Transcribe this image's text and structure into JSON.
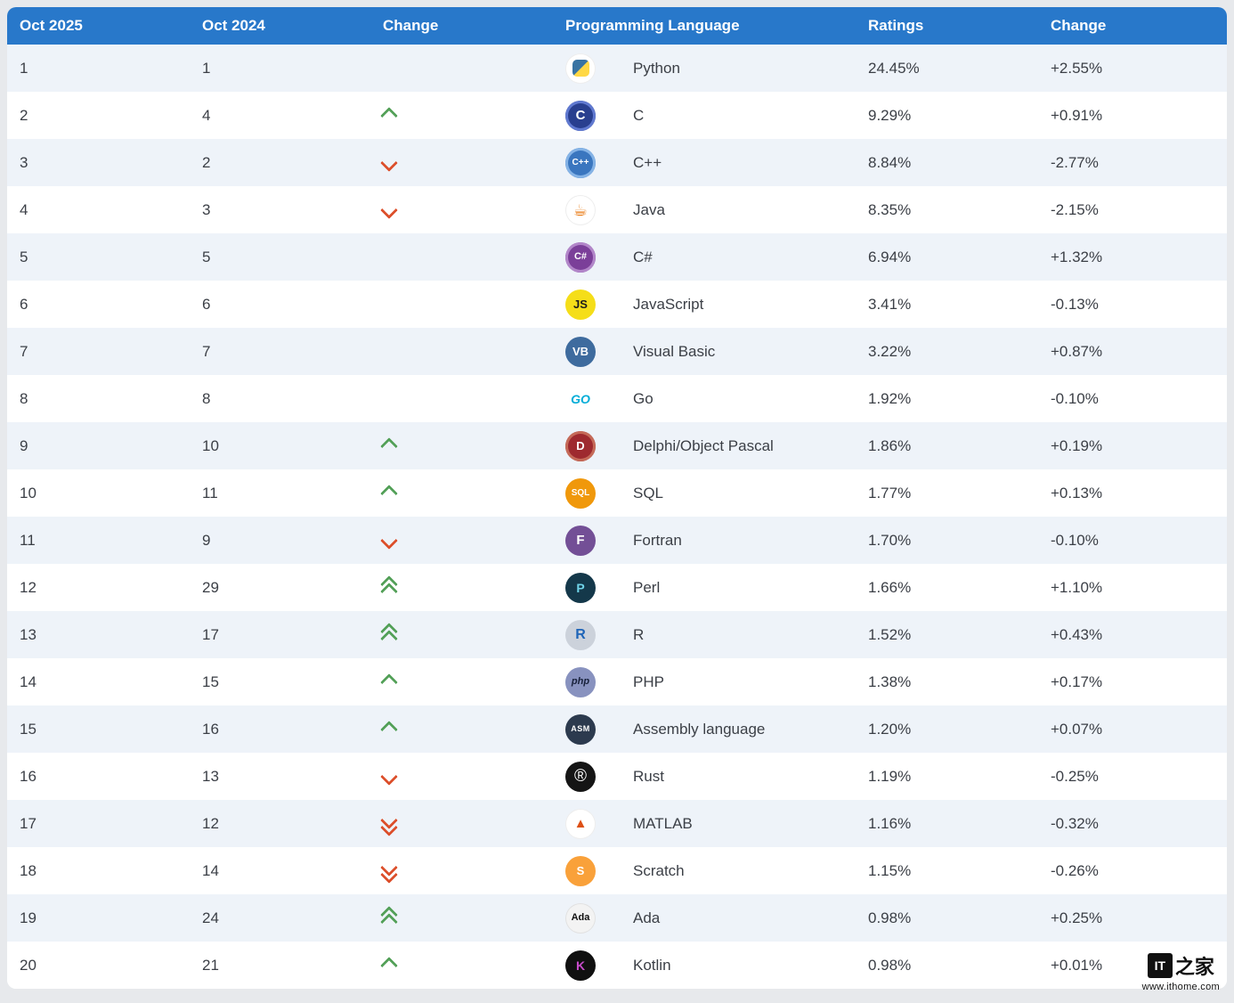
{
  "chart_data": {
    "type": "table",
    "columns": [
      "Oct 2025",
      "Oct 2024",
      "Change",
      "Programming Language",
      "Ratings",
      "Change"
    ],
    "rows": [
      {
        "rank2025": "1",
        "rank2024": "1",
        "move": "none",
        "language": "Python",
        "slug": "python",
        "ratings": "24.45%",
        "change": "+2.55%",
        "icon": {
          "bg": "#ffffff",
          "inner": "linear-gradient(135deg,#3873a3 49.5%,#ffd845 50.5%)"
        }
      },
      {
        "rank2025": "2",
        "rank2024": "4",
        "move": "up",
        "language": "C",
        "slug": "c",
        "ratings": "9.29%",
        "change": "+0.91%",
        "icon": {
          "bg": "#293f8f",
          "ring": "#6079d0",
          "label": "C",
          "fg": "#ffffff"
        }
      },
      {
        "rank2025": "3",
        "rank2024": "2",
        "move": "down",
        "language": "C++",
        "slug": "cpp",
        "ratings": "8.84%",
        "change": "-2.77%",
        "icon": {
          "bg": "#3a76bf",
          "ring": "#85b3e6",
          "label": "C++",
          "fg": "#ffffff"
        }
      },
      {
        "rank2025": "4",
        "rank2024": "3",
        "move": "down",
        "language": "Java",
        "slug": "java",
        "ratings": "8.35%",
        "change": "-2.15%",
        "icon": {
          "bg": "#ffffff",
          "label": "☕",
          "fg": "#e76f00"
        }
      },
      {
        "rank2025": "5",
        "rank2024": "5",
        "move": "none",
        "language": "C#",
        "slug": "csharp",
        "ratings": "6.94%",
        "change": "+1.32%",
        "icon": {
          "bg": "#7b3f99",
          "ring": "#b286c9",
          "label": "C#",
          "fg": "#ffffff"
        }
      },
      {
        "rank2025": "6",
        "rank2024": "6",
        "move": "none",
        "language": "JavaScript",
        "slug": "javascript",
        "ratings": "3.41%",
        "change": "-0.13%",
        "icon": {
          "bg": "#f5de19",
          "label": "JS",
          "fg": "#1c1c1c"
        }
      },
      {
        "rank2025": "7",
        "rank2024": "7",
        "move": "none",
        "language": "Visual Basic",
        "slug": "visual-basic",
        "ratings": "3.22%",
        "change": "+0.87%",
        "icon": {
          "bg": "#3e6b9e",
          "label": "VB",
          "fg": "#ffffff"
        }
      },
      {
        "rank2025": "8",
        "rank2024": "8",
        "move": "none",
        "language": "Go",
        "slug": "go",
        "ratings": "1.92%",
        "change": "-0.10%",
        "icon": {
          "bg": "transparent",
          "label": "GO",
          "fg": "#00acd7"
        }
      },
      {
        "rank2025": "9",
        "rank2024": "10",
        "move": "up",
        "language": "Delphi/Object Pascal",
        "slug": "delphi",
        "ratings": "1.86%",
        "change": "+0.19%",
        "icon": {
          "bg": "#9e2a2f",
          "ring": "#c56a58",
          "label": "D",
          "fg": "#ffffff"
        }
      },
      {
        "rank2025": "10",
        "rank2024": "11",
        "move": "up",
        "language": "SQL",
        "slug": "sql",
        "ratings": "1.77%",
        "change": "+0.13%",
        "icon": {
          "bg": "#f0980b",
          "label": "SQL",
          "fg": "#ffffff"
        }
      },
      {
        "rank2025": "11",
        "rank2024": "9",
        "move": "down",
        "language": "Fortran",
        "slug": "fortran",
        "ratings": "1.70%",
        "change": "-0.10%",
        "icon": {
          "bg": "#734f96",
          "label": "F",
          "fg": "#ffffff"
        }
      },
      {
        "rank2025": "12",
        "rank2024": "29",
        "move": "up2",
        "language": "Perl",
        "slug": "perl",
        "ratings": "1.66%",
        "change": "+1.10%",
        "icon": {
          "bg": "#14384a",
          "label": "P",
          "fg": "#6fd3e8"
        }
      },
      {
        "rank2025": "13",
        "rank2024": "17",
        "move": "up2",
        "language": "R",
        "slug": "r",
        "ratings": "1.52%",
        "change": "+0.43%",
        "icon": {
          "bg": "#ccd2db",
          "label": "R",
          "fg": "#1f65b8"
        }
      },
      {
        "rank2025": "14",
        "rank2024": "15",
        "move": "up",
        "language": "PHP",
        "slug": "php",
        "ratings": "1.38%",
        "change": "+0.17%",
        "icon": {
          "bg": "#8892bf",
          "label": "php",
          "fg": "#17203a"
        }
      },
      {
        "rank2025": "15",
        "rank2024": "16",
        "move": "up",
        "language": "Assembly language",
        "slug": "assembly",
        "ratings": "1.20%",
        "change": "+0.07%",
        "icon": {
          "bg": "#2c3a4e",
          "label": "ASM",
          "fg": "#ffffff"
        }
      },
      {
        "rank2025": "16",
        "rank2024": "13",
        "move": "down",
        "language": "Rust",
        "slug": "rust",
        "ratings": "1.19%",
        "change": "-0.25%",
        "icon": {
          "bg": "#151515",
          "label": "®",
          "fg": "#ffffff"
        }
      },
      {
        "rank2025": "17",
        "rank2024": "12",
        "move": "down2",
        "language": "MATLAB",
        "slug": "matlab",
        "ratings": "1.16%",
        "change": "-0.32%",
        "icon": {
          "bg": "#ffffff",
          "label": "▲",
          "fg": "#dd5016"
        }
      },
      {
        "rank2025": "18",
        "rank2024": "14",
        "move": "down2",
        "language": "Scratch",
        "slug": "scratch",
        "ratings": "1.15%",
        "change": "-0.26%",
        "icon": {
          "bg": "#f9a13a",
          "label": "S",
          "fg": "#ffffff"
        }
      },
      {
        "rank2025": "19",
        "rank2024": "24",
        "move": "up2",
        "language": "Ada",
        "slug": "ada",
        "ratings": "0.98%",
        "change": "+0.25%",
        "icon": {
          "bg": "#f3f3f3",
          "label": "Ada",
          "fg": "#111111"
        }
      },
      {
        "rank2025": "20",
        "rank2024": "21",
        "move": "up",
        "language": "Kotlin",
        "slug": "kotlin",
        "ratings": "0.98%",
        "change": "+0.01%",
        "icon": {
          "bg": "#101010",
          "label": "K",
          "fg": "#c94ccd"
        }
      }
    ]
  },
  "colors": {
    "header_bg": "#2878ca",
    "row_alt_bg": "#eef3f9",
    "row_bg": "#ffffff",
    "up_arrow": "#53a058",
    "down_arrow": "#dc4f2b",
    "text": "#3b3f46"
  },
  "watermark": {
    "logo_prefix": "IT",
    "logo_suffix": "之家",
    "site": "www.ithome.com"
  }
}
